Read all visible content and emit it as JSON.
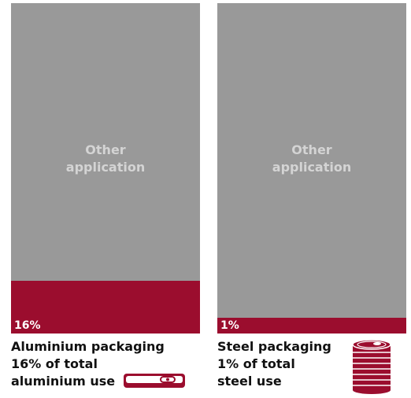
{
  "chart_data": [
    {
      "type": "bar",
      "categories": [
        "Aluminium"
      ],
      "series": [
        {
          "name": "Packaging",
          "values": [
            16
          ]
        },
        {
          "name": "Other application",
          "values": [
            84
          ]
        }
      ],
      "share_label": "16%",
      "other_label": [
        "Other",
        "application"
      ],
      "ylim": [
        0,
        100
      ],
      "caption": [
        "Aluminium packaging",
        "16% of total",
        "aluminium use"
      ]
    },
    {
      "type": "bar",
      "categories": [
        "Steel"
      ],
      "series": [
        {
          "name": "Packaging",
          "values": [
            1
          ]
        },
        {
          "name": "Other application",
          "values": [
            99
          ]
        }
      ],
      "share_label": "1%",
      "other_label": [
        "Other",
        "application"
      ],
      "ylim": [
        0,
        100
      ],
      "caption": [
        "Steel packaging",
        "1% of total",
        "steel use"
      ]
    }
  ],
  "colors": {
    "packaging": "#9b0d2e",
    "other": "#999999",
    "other_text": "#d4d4d4"
  },
  "icons": {
    "left": "aluminium-tin-icon",
    "right": "steel-can-icon"
  }
}
